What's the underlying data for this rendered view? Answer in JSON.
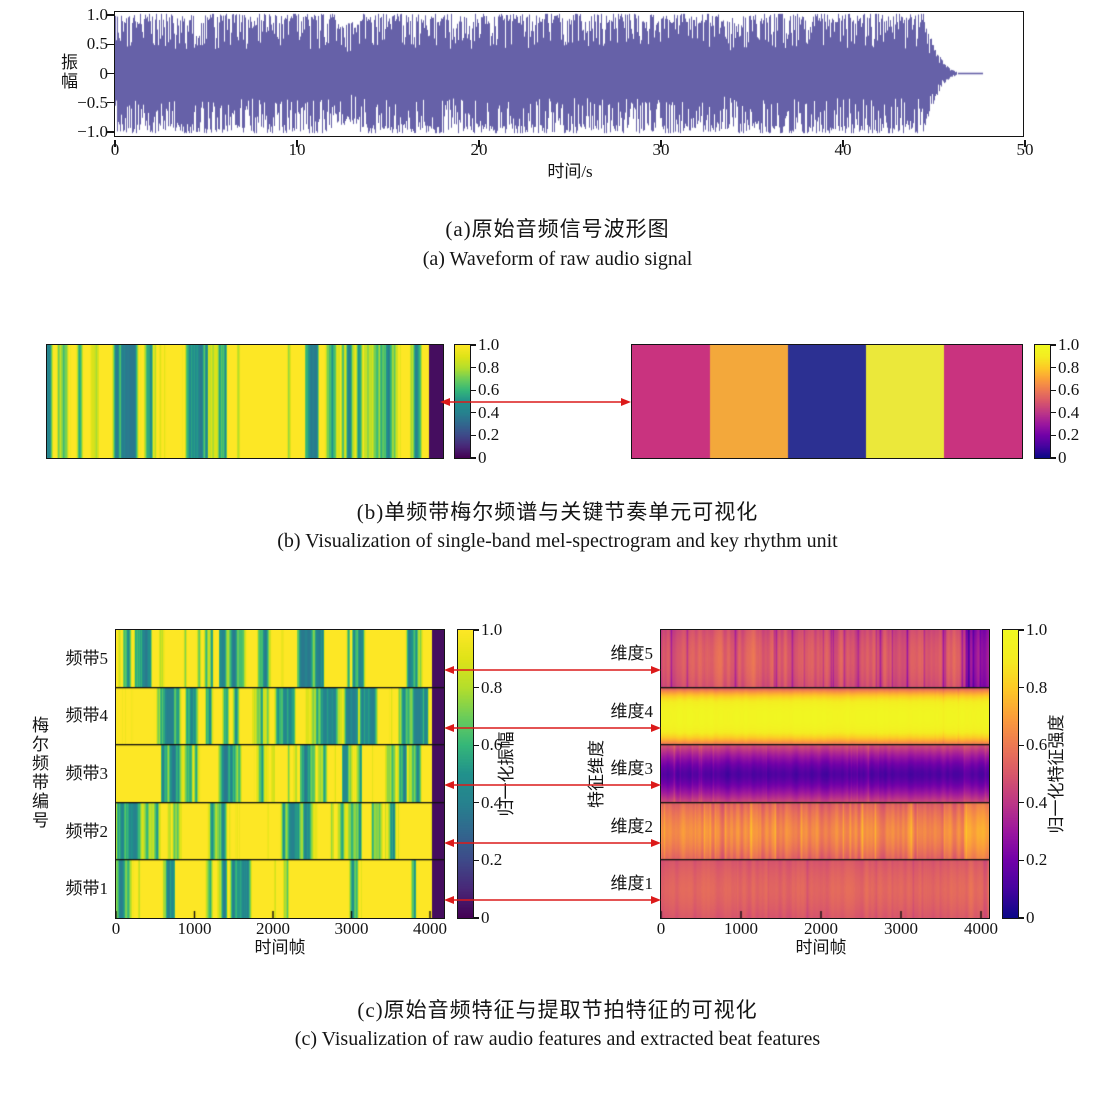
{
  "colors": {
    "waveform": "#6661a8",
    "arrow": "#dc1a1a",
    "axis": "#141414",
    "rhythm_blocks": [
      "#c9337f",
      "#f3a83b",
      "#2c3092",
      "#ebe83a",
      "#c9337f"
    ]
  },
  "ui": {
    "panel_a": {
      "ylabel": "振幅",
      "xlabel": "时间/s",
      "y_ticks": [
        "1.0",
        "0.5",
        "0",
        "−0.5",
        "−1.0"
      ],
      "x_ticks": [
        "0",
        "10",
        "20",
        "30",
        "40",
        "50"
      ]
    },
    "panel_b": {
      "colorbar_ticks": [
        "1.0",
        "0.8",
        "0.6",
        "0.4",
        "0.2",
        "0"
      ]
    },
    "panel_c": {
      "ylabel": "梅尔频带编号",
      "xlabel_left": "时间帧",
      "xlabel_right": "时间帧",
      "mid_label": "特征维度",
      "colorbar_label_left": "归一化振幅",
      "colorbar_label_right": "归一化特征强度",
      "bands": [
        "频带5",
        "频带4",
        "频带3",
        "频带2",
        "频带1"
      ],
      "dims": [
        "维度5",
        "维度4",
        "维度3",
        "维度2",
        "维度1"
      ],
      "x_ticks": [
        "0",
        "1000",
        "2000",
        "3000",
        "4000"
      ],
      "colorbar_ticks": [
        "1.0",
        "0.8",
        "0.6",
        "0.4",
        "0.2",
        "0"
      ]
    },
    "captions": {
      "a_zh": "(a)原始音频信号波形图",
      "a_en": "(a) Waveform of raw audio signal",
      "b_zh": "(b)单频带梅尔频谱与关键节奏单元可视化",
      "b_en": "(b) Visualization of single-band mel-spectrogram and key rhythm unit",
      "c_zh": "(c)原始音频特征与提取节拍特征的可视化",
      "c_en": "(c) Visualization of raw audio features and extracted beat features"
    }
  },
  "chart_data": [
    {
      "id": "a",
      "type": "line",
      "subtype": "audio-waveform",
      "title_zh": "(a)原始音频信号波形图",
      "title_en": "(a) Waveform of raw audio signal",
      "xlabel": "时间/s",
      "ylabel": "振幅",
      "xlim": [
        0,
        50
      ],
      "ylim": [
        -1.05,
        1.05
      ],
      "x_ticks": [
        0,
        10,
        20,
        30,
        40,
        50
      ],
      "y_ticks": [
        1.0,
        0.5,
        0,
        -0.5,
        -1.0
      ],
      "signal": {
        "full_amplitude_until_s": 44.4,
        "fade_out_until_s": 46.3,
        "silence_flatline_until_s": 47.7,
        "description": "dense music waveform, amplitude mostly clipped near ±1 with brief quieter dips near 12.5 s and 33.5 s"
      }
    },
    {
      "id": "b",
      "type": "heatmap",
      "title_zh": "(b)单频带梅尔频谱与关键节奏单元可视化",
      "title_en": "(b) Visualization of single-band mel-spectrogram and key rhythm unit",
      "panels": [
        {
          "name": "single-band mel-spectrogram",
          "colormap": "viridis",
          "value_range": [
            0,
            1
          ],
          "colorbar_ticks": [
            0,
            0.2,
            0.4,
            0.6,
            0.8,
            1.0
          ],
          "pattern": "high-frequency vertical stripes with values ≈0.4–1.0; trailing ≈3.5% of width ≈0 (dark purple)"
        },
        {
          "name": "key rhythm unit",
          "colormap": "plasma",
          "value_range": [
            0,
            1
          ],
          "colorbar_ticks": [
            0,
            0.2,
            0.4,
            0.6,
            0.8,
            1.0
          ],
          "block_values": [
            0.55,
            0.8,
            0.03,
            1.0,
            0.55
          ]
        }
      ],
      "link": "red double-headed arrow joining the two panels at mid-height"
    },
    {
      "id": "c",
      "type": "heatmap",
      "title_zh": "(c)原始音频特征与提取节拍特征的可视化",
      "title_en": "(c) Visualization of raw audio features and extracted beat features",
      "panels": [
        {
          "name": "raw audio features (mel bands)",
          "ylabel": "梅尔频带编号",
          "xlabel": "时间帧",
          "rows_top_to_bottom": [
            "频带5",
            "频带4",
            "频带3",
            "频带2",
            "频带1"
          ],
          "x_ticks": [
            0,
            1000,
            2000,
            3000,
            4000
          ],
          "x_max": 4180,
          "colormap": "viridis",
          "colorbar_label": "归一化振幅",
          "colorbar_ticks": [
            0,
            0.2,
            0.4,
            0.6,
            0.8,
            1.0
          ],
          "band_lifts": [
            0.02,
            0.05,
            0.0,
            0.06,
            0.03
          ],
          "pattern": "vertical viridis stripes per band, trailing ≈12 px ≈0 (dark purple), thin black separators between bands"
        },
        {
          "name": "extracted beat features (dimensions)",
          "rows_label": "特征维度",
          "xlabel": "时间帧",
          "rows_top_to_bottom": [
            "维度5",
            "维度4",
            "维度3",
            "维度2",
            "维度1"
          ],
          "x_ticks": [
            0,
            1000,
            2000,
            3000,
            4000
          ],
          "x_max": 4100,
          "colormap": "plasma",
          "colorbar_label": "归一化特征强度",
          "colorbar_ticks": [
            0,
            0.2,
            0.4,
            0.6,
            0.8,
            1.0
          ],
          "row_profiles": [
            {
              "base": 0.52,
              "edge": -0.05,
              "pow": 2.0,
              "noise": 0.09,
              "streak_p": 0.06,
              "streak_v": -0.24
            },
            {
              "base": 0.97,
              "edge": -0.45,
              "pow": 3.0,
              "noise": 0.025,
              "streak_p": 0.02,
              "streak_v": -0.05
            },
            {
              "base": 0.12,
              "edge": 0.35,
              "pow": 1.5,
              "noise": 0.045,
              "streak_p": 0.05,
              "streak_v": 0.09
            },
            {
              "base": 0.64,
              "edge": -0.12,
              "pow": 1.6,
              "noise": 0.1,
              "streak_p": 0.05,
              "streak_v": 0.14
            },
            {
              "base": 0.55,
              "edge": -0.05,
              "pow": 1.6,
              "noise": 0.05,
              "streak_p": 0.04,
              "streak_v": -0.07
            }
          ]
        }
      ],
      "link": "five red double-headed arrows joining corresponding band/dimension rows"
    }
  ]
}
